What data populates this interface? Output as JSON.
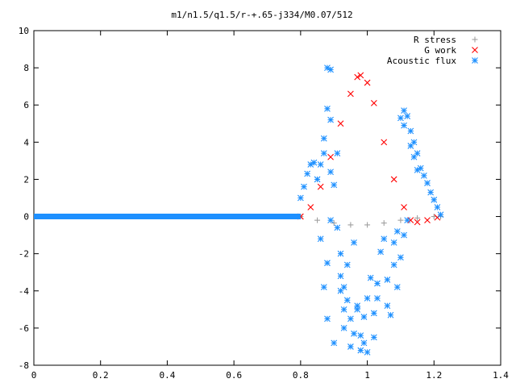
{
  "chart_data": {
    "type": "scatter",
    "title": "m1/n1.5/q1.5/r-+.65-j334/M0.07/512",
    "xlabel": "",
    "ylabel": "",
    "xlim": [
      0,
      1.4
    ],
    "ylim": [
      -8,
      10
    ],
    "x_ticks": [
      0,
      0.2,
      0.4,
      0.6,
      0.8,
      1,
      1.2,
      1.4
    ],
    "x_tick_labels": [
      "0",
      "0.2",
      "0.4",
      "0.6",
      "0.8",
      "1",
      "1.2",
      "1.4"
    ],
    "y_ticks": [
      -8,
      -6,
      -4,
      -2,
      0,
      2,
      4,
      6,
      8,
      10
    ],
    "y_tick_labels": [
      "-8",
      "-6",
      "-4",
      "-2",
      "0",
      "2",
      "4",
      "6",
      "8",
      "10"
    ],
    "grid": false,
    "legend_position": "top-right",
    "series": [
      {
        "name": "R stress",
        "marker": "plus",
        "color": "#a0a0a0",
        "points": [
          [
            0.8,
            0.0
          ],
          [
            0.85,
            -0.2
          ],
          [
            0.9,
            -0.35
          ],
          [
            0.95,
            -0.45
          ],
          [
            1.0,
            -0.45
          ],
          [
            1.05,
            -0.35
          ],
          [
            1.1,
            -0.2
          ],
          [
            1.15,
            -0.08
          ],
          [
            1.2,
            0.0
          ],
          [
            1.22,
            0.0
          ]
        ]
      },
      {
        "name": "G work",
        "marker": "cross",
        "color": "#ff0000",
        "points": [
          [
            0.8,
            0.0
          ],
          [
            0.83,
            0.5
          ],
          [
            0.86,
            1.6
          ],
          [
            0.89,
            3.2
          ],
          [
            0.92,
            5.0
          ],
          [
            0.95,
            6.6
          ],
          [
            0.97,
            7.5
          ],
          [
            0.98,
            7.6
          ],
          [
            1.0,
            7.2
          ],
          [
            1.02,
            6.1
          ],
          [
            1.05,
            4.0
          ],
          [
            1.08,
            2.0
          ],
          [
            1.11,
            0.5
          ],
          [
            1.13,
            -0.2
          ],
          [
            1.15,
            -0.3
          ],
          [
            1.18,
            -0.2
          ],
          [
            1.21,
            -0.05
          ]
        ]
      },
      {
        "name": "Acoustic flux",
        "marker": "star",
        "color": "#1e90ff",
        "baseline": {
          "x_start": 0.0,
          "x_end": 0.8,
          "y": 0.0
        },
        "points": [
          [
            0.8,
            1.0
          ],
          [
            0.81,
            1.6
          ],
          [
            0.82,
            2.3
          ],
          [
            0.83,
            2.8
          ],
          [
            0.84,
            2.9
          ],
          [
            0.85,
            2.0
          ],
          [
            0.86,
            2.8
          ],
          [
            0.86,
            -1.2
          ],
          [
            0.87,
            4.2
          ],
          [
            0.87,
            3.4
          ],
          [
            0.87,
            -3.8
          ],
          [
            0.88,
            5.8
          ],
          [
            0.88,
            8.0
          ],
          [
            0.88,
            -2.5
          ],
          [
            0.88,
            -5.5
          ],
          [
            0.89,
            7.9
          ],
          [
            0.89,
            5.2
          ],
          [
            0.89,
            2.4
          ],
          [
            0.89,
            -0.2
          ],
          [
            0.9,
            -6.8
          ],
          [
            0.9,
            1.7
          ],
          [
            0.91,
            -0.6
          ],
          [
            0.91,
            3.4
          ],
          [
            0.92,
            -3.2
          ],
          [
            0.92,
            -4.0
          ],
          [
            0.92,
            -2.0
          ],
          [
            0.93,
            -5.0
          ],
          [
            0.93,
            -6.0
          ],
          [
            0.93,
            -3.8
          ],
          [
            0.94,
            -2.6
          ],
          [
            0.94,
            -4.5
          ],
          [
            0.95,
            -7.0
          ],
          [
            0.95,
            -5.5
          ],
          [
            0.96,
            -6.3
          ],
          [
            0.96,
            -1.4
          ],
          [
            0.97,
            -4.8
          ],
          [
            0.97,
            -5.0
          ],
          [
            0.98,
            -7.2
          ],
          [
            0.98,
            -6.4
          ],
          [
            0.99,
            -6.8
          ],
          [
            0.99,
            -5.4
          ],
          [
            1.0,
            -7.3
          ],
          [
            1.0,
            -4.4
          ],
          [
            1.01,
            -3.3
          ],
          [
            1.02,
            -5.2
          ],
          [
            1.02,
            -6.5
          ],
          [
            1.03,
            -4.4
          ],
          [
            1.03,
            -3.6
          ],
          [
            1.04,
            -1.9
          ],
          [
            1.05,
            -1.2
          ],
          [
            1.06,
            -3.4
          ],
          [
            1.06,
            -4.8
          ],
          [
            1.07,
            -5.3
          ],
          [
            1.08,
            -2.6
          ],
          [
            1.08,
            -1.4
          ],
          [
            1.09,
            -3.8
          ],
          [
            1.09,
            -0.8
          ],
          [
            1.1,
            -2.2
          ],
          [
            1.1,
            5.3
          ],
          [
            1.11,
            -1.0
          ],
          [
            1.11,
            4.9
          ],
          [
            1.11,
            5.7
          ],
          [
            1.12,
            -0.2
          ],
          [
            1.12,
            5.4
          ],
          [
            1.13,
            3.8
          ],
          [
            1.13,
            4.6
          ],
          [
            1.14,
            3.2
          ],
          [
            1.14,
            4.0
          ],
          [
            1.15,
            2.5
          ],
          [
            1.15,
            3.4
          ],
          [
            1.16,
            2.6
          ],
          [
            1.17,
            2.2
          ],
          [
            1.18,
            1.8
          ],
          [
            1.19,
            1.3
          ],
          [
            1.2,
            0.9
          ],
          [
            1.21,
            0.5
          ],
          [
            1.22,
            0.1
          ]
        ]
      }
    ]
  }
}
